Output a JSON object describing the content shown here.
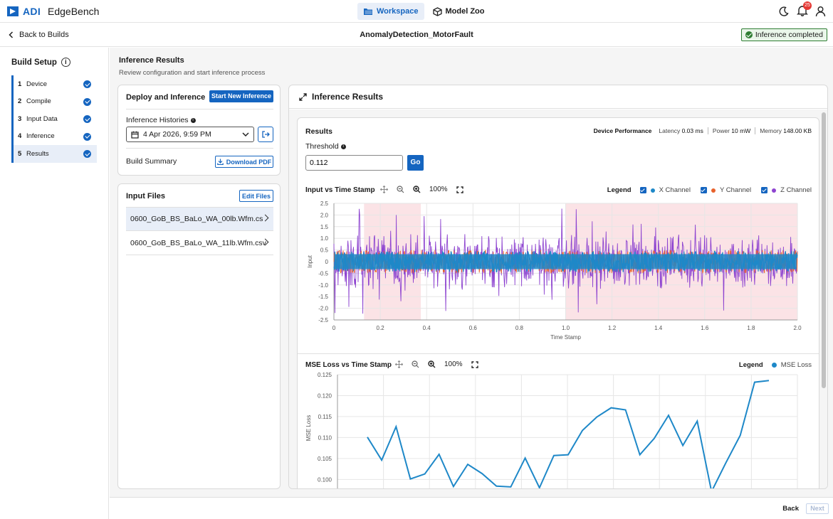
{
  "app": {
    "brand": "ADI",
    "name": "EdgeBench"
  },
  "topnav": [
    {
      "label": "Workspace",
      "icon": "folder-icon",
      "active": true
    },
    {
      "label": "Model Zoo",
      "icon": "cube-icon",
      "active": false
    }
  ],
  "notifications": {
    "count": "25"
  },
  "subbar": {
    "back_label": "Back to Builds",
    "build_name": "AnomalyDetection_MotorFault",
    "status": "Inference completed"
  },
  "sidebar": {
    "title": "Build Setup",
    "steps": [
      {
        "num": "1",
        "label": "Device"
      },
      {
        "num": "2",
        "label": "Compile"
      },
      {
        "num": "3",
        "label": "Input Data"
      },
      {
        "num": "4",
        "label": "Inference"
      },
      {
        "num": "5",
        "label": "Results"
      }
    ]
  },
  "main": {
    "title": "Inference Results",
    "subtitle": "Review configuration and start inference process"
  },
  "deploy": {
    "title": "Deploy and Inference",
    "start_button": "Start New Inference",
    "histories_label": "Inference Histories",
    "history_value": "4 Apr 2026, 9:59 PM",
    "summary_label": "Build Summary",
    "download_button": "Download PDF"
  },
  "input_files": {
    "title": "Input Files",
    "edit_button": "Edit Files",
    "files": [
      "0600_GoB_BS_BaLo_WA_00lb.Wfm.cs",
      "0600_GoB_BS_BaLo_WA_11lb.Wfm.csv"
    ]
  },
  "results_panel": {
    "title": "Inference Results",
    "results_label": "Results",
    "perf": {
      "title": "Device Performance",
      "latency_label": "Latency",
      "latency": "0.03 ms",
      "power_label": "Power",
      "power": "10 mW",
      "memory_label": "Memory",
      "memory": "148.00 KB"
    },
    "threshold_label": "Threshold",
    "threshold_value": "0.112",
    "go_button": "Go",
    "zoom": "100%",
    "legend_label": "Legend"
  },
  "colors": {
    "accent": "#1565c0",
    "x_channel": "#1e88c8",
    "y_channel": "#e8622c",
    "z_channel": "#8e44d0",
    "anomaly_band": "#fbe3e6"
  },
  "chart_data": [
    {
      "type": "line",
      "title": "Input vs Time Stamp",
      "xlabel": "Time Stamp",
      "ylabel": "Input",
      "xlim": [
        0,
        2.0
      ],
      "ylim": [
        -2.5,
        2.5
      ],
      "xticks": [
        "0",
        "0.2",
        "0.4",
        "0.6",
        "0.8",
        "1.0",
        "1.2",
        "1.4",
        "1.6",
        "1.8",
        "2.0"
      ],
      "yticks": [
        "2.5",
        "2.0",
        "1.5",
        "1.0",
        "0.5",
        "0",
        "-0.5",
        "-1.0",
        "-1.5",
        "-2.0",
        "-2.5"
      ],
      "anomaly_ranges": [
        [
          0.13,
          0.375
        ],
        [
          1.0,
          2.0
        ]
      ],
      "series": [
        {
          "name": "X Channel",
          "color": "#1e88c8",
          "amplitude": 0.45
        },
        {
          "name": "Y Channel",
          "color": "#e8622c",
          "amplitude": 0.5
        },
        {
          "name": "Z Channel",
          "color": "#8e44d0",
          "amplitude": 1.7
        }
      ],
      "legend": "top-right",
      "grid": true
    },
    {
      "type": "line",
      "title": "MSE Loss vs Time Stamp",
      "ylabel": "MSE Loss",
      "ylim": [
        0.097,
        0.125
      ],
      "yticks": [
        "0.125",
        "0.120",
        "0.115",
        "0.110",
        "0.105",
        "0.100"
      ],
      "series": [
        {
          "name": "MSE Loss",
          "color": "#1e88c8",
          "values": [
            0.1101,
            0.1046,
            0.1126,
            0.1001,
            0.1013,
            0.106,
            0.0983,
            0.1036,
            0.1014,
            0.0984,
            0.0982,
            0.1051,
            0.098,
            0.1057,
            0.1059,
            0.1117,
            0.1149,
            0.1171,
            0.1166,
            0.1059,
            0.1098,
            0.1153,
            0.1081,
            0.1139,
            0.0971,
            0.104,
            0.1105,
            0.1232,
            0.1236
          ]
        }
      ],
      "legend": "top-right",
      "grid": true
    }
  ],
  "footer": {
    "back": "Back",
    "next": "Next"
  }
}
